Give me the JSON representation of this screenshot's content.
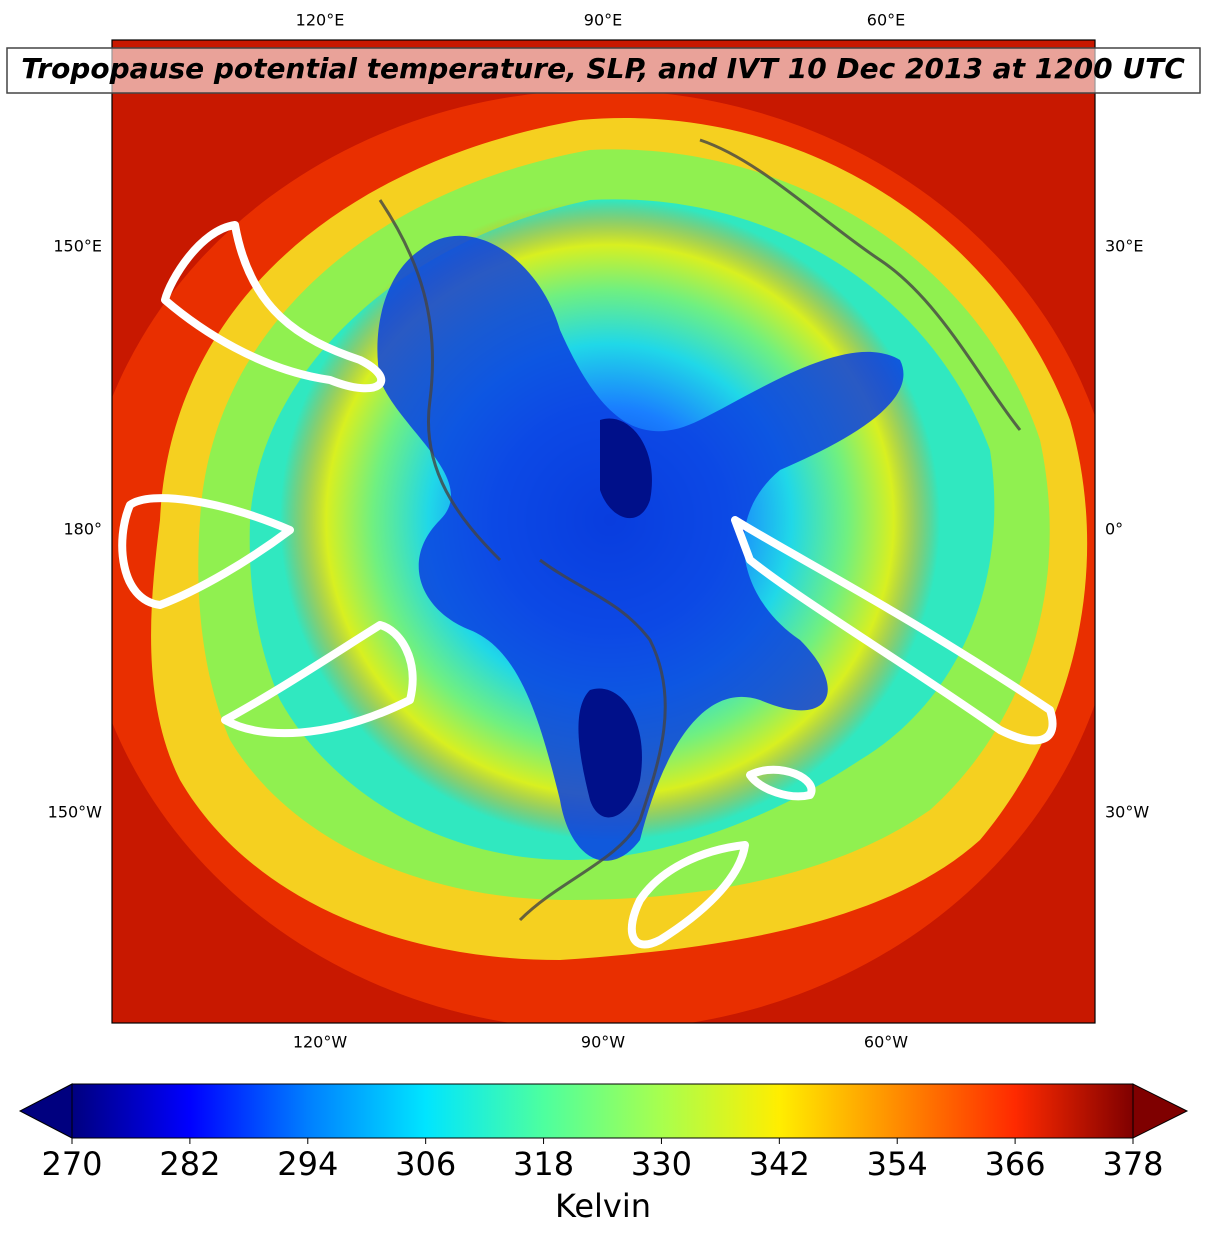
{
  "title": "Tropopause potential temperature, SLP, and IVT 10 Dec 2013 at 1200 UTC",
  "map": {
    "top_labels": [
      "120°E",
      "90°E",
      "60°E"
    ],
    "bottom_labels": [
      "120°W",
      "90°W",
      "60°W"
    ],
    "left_labels": [
      "150°E",
      "180°",
      "150°W"
    ],
    "right_labels": [
      "30°E",
      "0°",
      "30°W"
    ]
  },
  "colorbar": {
    "range": [
      270,
      378
    ],
    "ticks": [
      270,
      282,
      294,
      306,
      318,
      330,
      342,
      354,
      366,
      378
    ],
    "label": "Kelvin",
    "colors": [
      "#00007f",
      "#0000ff",
      "#007fff",
      "#00e5ff",
      "#4dff9f",
      "#a8ff4e",
      "#ffee00",
      "#ff8c00",
      "#ff2a00",
      "#7f0000"
    ]
  }
}
